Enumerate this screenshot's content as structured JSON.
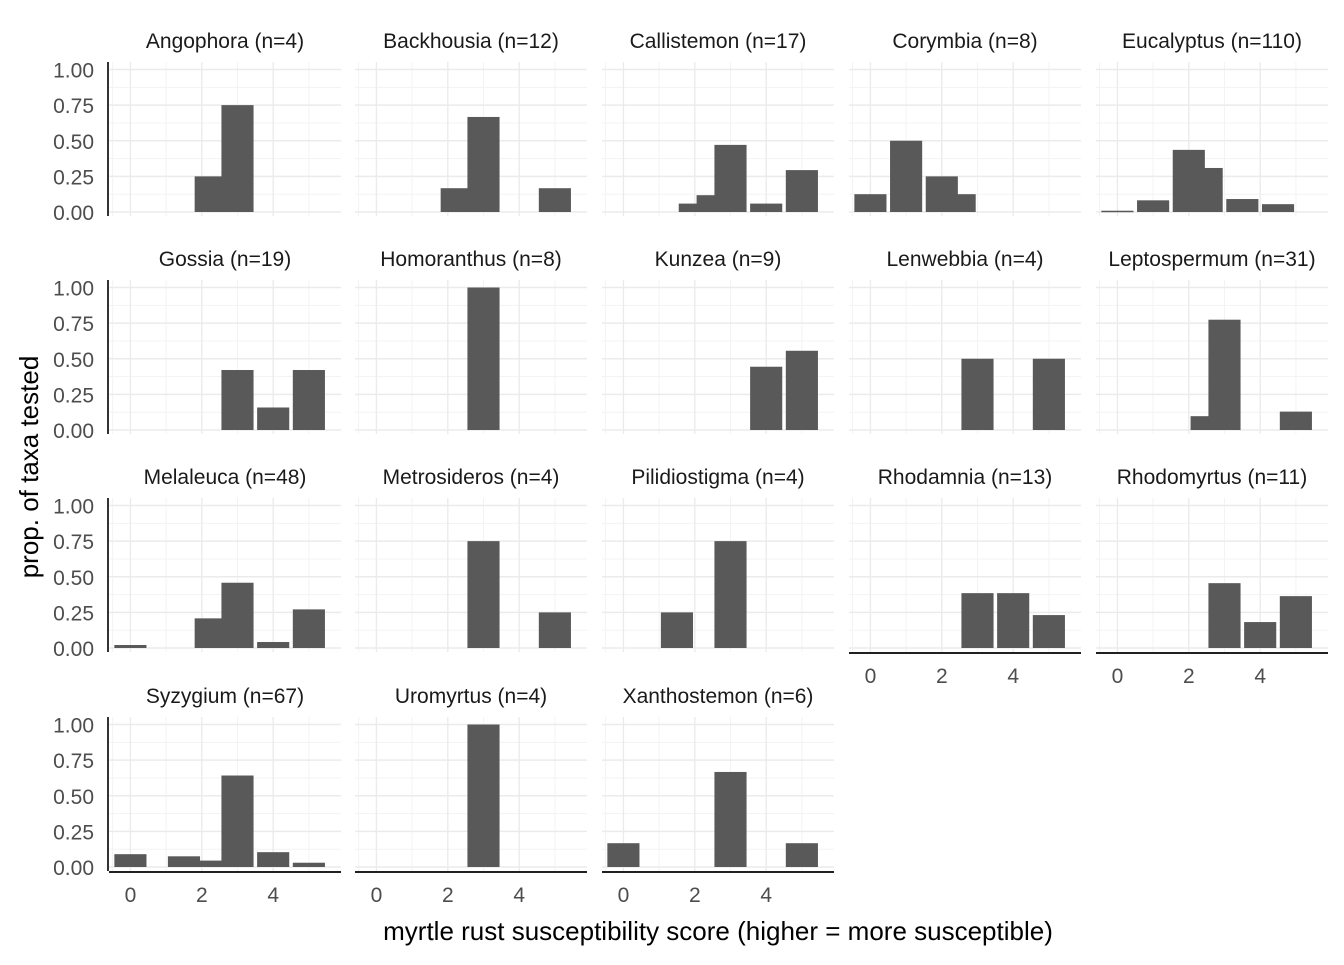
{
  "chart_data": {
    "type": "bar",
    "title": "",
    "xlabel": "myrtle rust susceptibility score (higher = more susceptible)",
    "ylabel": "prop. of taxa tested",
    "xlim": [
      -0.6,
      5.9
    ],
    "ylim": [
      0,
      1.05
    ],
    "x_ticks": [
      0,
      2,
      4
    ],
    "y_ticks": [
      0.0,
      0.25,
      0.5,
      0.75,
      1.0
    ],
    "y_tick_labels": [
      "0.00",
      "0.25",
      "0.50",
      "0.75",
      "1.00"
    ],
    "bar_width": 0.9,
    "bar_color": "#595959",
    "grid": true,
    "grid_color": "#ebebeb",
    "facets": [
      {
        "label": "Angophora (n=4)",
        "bars": [
          {
            "x": 2.25,
            "y": 0.25
          },
          {
            "x": 3.0,
            "y": 0.75
          }
        ]
      },
      {
        "label": "Backhousia (n=12)",
        "bars": [
          {
            "x": 2.25,
            "y": 0.167
          },
          {
            "x": 3.0,
            "y": 0.667
          },
          {
            "x": 5.0,
            "y": 0.167
          }
        ]
      },
      {
        "label": "Callistemon (n=17)",
        "bars": [
          {
            "x": 2.0,
            "y": 0.059
          },
          {
            "x": 2.5,
            "y": 0.118
          },
          {
            "x": 3.0,
            "y": 0.471
          },
          {
            "x": 4.0,
            "y": 0.059
          },
          {
            "x": 5.0,
            "y": 0.294
          }
        ]
      },
      {
        "label": "Corymbia (n=8)",
        "bars": [
          {
            "x": 0.0,
            "y": 0.125
          },
          {
            "x": 1.0,
            "y": 0.5
          },
          {
            "x": 2.0,
            "y": 0.25
          },
          {
            "x": 2.5,
            "y": 0.125
          }
        ]
      },
      {
        "label": "Eucalyptus (n=110)",
        "bars": [
          {
            "x": 0.0,
            "y": 0.009
          },
          {
            "x": 1.0,
            "y": 0.082
          },
          {
            "x": 2.0,
            "y": 0.436
          },
          {
            "x": 2.5,
            "y": 0.309
          },
          {
            "x": 3.5,
            "y": 0.091
          },
          {
            "x": 4.5,
            "y": 0.055
          }
        ]
      },
      {
        "label": "Gossia (n=19)",
        "bars": [
          {
            "x": 3.0,
            "y": 0.421
          },
          {
            "x": 4.0,
            "y": 0.158
          },
          {
            "x": 5.0,
            "y": 0.421
          }
        ]
      },
      {
        "label": "Homoranthus (n=8)",
        "bars": [
          {
            "x": 3.0,
            "y": 1.0
          }
        ]
      },
      {
        "label": "Kunzea (n=9)",
        "bars": [
          {
            "x": 4.0,
            "y": 0.444
          },
          {
            "x": 5.0,
            "y": 0.556
          }
        ]
      },
      {
        "label": "Lenwebbia (n=4)",
        "bars": [
          {
            "x": 3.0,
            "y": 0.5
          },
          {
            "x": 5.0,
            "y": 0.5
          }
        ]
      },
      {
        "label": "Leptospermum (n=31)",
        "bars": [
          {
            "x": 2.5,
            "y": 0.097
          },
          {
            "x": 3.0,
            "y": 0.774
          },
          {
            "x": 5.0,
            "y": 0.129
          }
        ]
      },
      {
        "label": "Melaleuca (n=48)",
        "bars": [
          {
            "x": 0.0,
            "y": 0.021
          },
          {
            "x": 2.25,
            "y": 0.208
          },
          {
            "x": 3.0,
            "y": 0.458
          },
          {
            "x": 4.0,
            "y": 0.042
          },
          {
            "x": 5.0,
            "y": 0.271
          }
        ]
      },
      {
        "label": "Metrosideros (n=4)",
        "bars": [
          {
            "x": 3.0,
            "y": 0.75
          },
          {
            "x": 5.0,
            "y": 0.25
          }
        ]
      },
      {
        "label": "Pilidiostigma (n=4)",
        "bars": [
          {
            "x": 1.5,
            "y": 0.25
          },
          {
            "x": 3.0,
            "y": 0.75
          }
        ]
      },
      {
        "label": "Rhodamnia (n=13)",
        "bars": [
          {
            "x": 3.0,
            "y": 0.385
          },
          {
            "x": 4.0,
            "y": 0.385
          },
          {
            "x": 5.0,
            "y": 0.231
          }
        ]
      },
      {
        "label": "Rhodomyrtus (n=11)",
        "bars": [
          {
            "x": 3.0,
            "y": 0.455
          },
          {
            "x": 4.0,
            "y": 0.182
          },
          {
            "x": 5.0,
            "y": 0.364
          }
        ]
      },
      {
        "label": "Syzygium (n=67)",
        "bars": [
          {
            "x": 0.0,
            "y": 0.09
          },
          {
            "x": 1.5,
            "y": 0.075
          },
          {
            "x": 2.25,
            "y": 0.045
          },
          {
            "x": 3.0,
            "y": 0.642
          },
          {
            "x": 4.0,
            "y": 0.104
          },
          {
            "x": 5.0,
            "y": 0.03
          }
        ]
      },
      {
        "label": "Uromyrtus (n=4)",
        "bars": [
          {
            "x": 3.0,
            "y": 1.0
          }
        ]
      },
      {
        "label": "Xanthostemon (n=6)",
        "bars": [
          {
            "x": 0.0,
            "y": 0.167
          },
          {
            "x": 3.0,
            "y": 0.667
          },
          {
            "x": 5.0,
            "y": 0.167
          }
        ]
      }
    ]
  }
}
